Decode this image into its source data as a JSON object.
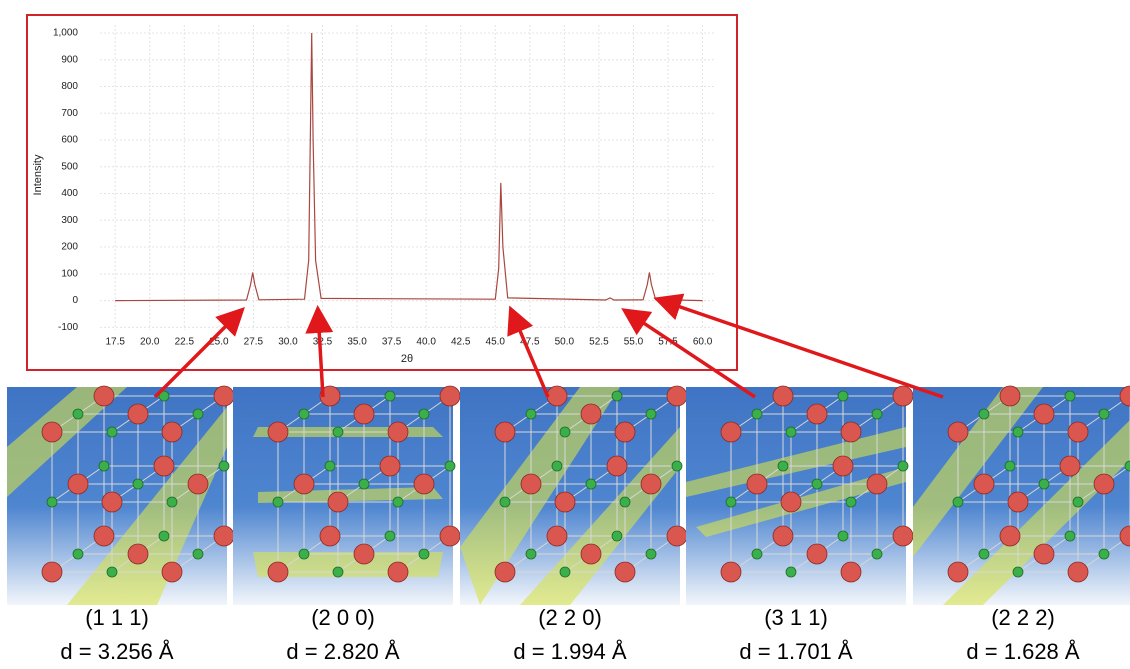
{
  "chart_data": {
    "type": "line",
    "x": [
      17.5,
      27.0,
      27.3,
      27.45,
      27.6,
      27.9,
      31.2,
      31.5,
      31.62,
      31.72,
      31.82,
      32.0,
      32.4,
      45.0,
      45.25,
      45.4,
      45.55,
      45.9,
      53.0,
      53.3,
      53.6,
      55.7,
      56.0,
      56.15,
      56.3,
      56.6,
      60.0
    ],
    "values": [
      0,
      2,
      60,
      105,
      60,
      3,
      5,
      150,
      600,
      1000,
      600,
      150,
      8,
      5,
      120,
      440,
      200,
      10,
      2,
      10,
      2,
      3,
      60,
      105,
      60,
      4,
      0
    ],
    "color": "#a8473f",
    "xlabel": "2θ",
    "ylabel": "Intensity",
    "xlim": [
      16.4,
      60.9
    ],
    "ylim": [
      -110,
      1030
    ],
    "xticks": [
      17.5,
      {
        "value": 20,
        "label": "20.0"
      },
      22.5,
      {
        "value": 25,
        "label": "25.0"
      },
      27.5,
      {
        "value": 30,
        "label": "30.0"
      },
      32.5,
      {
        "value": 35,
        "label": "35.0"
      },
      37.5,
      {
        "value": 40,
        "label": "40.0"
      },
      42.5,
      {
        "value": 45,
        "label": "45.0"
      },
      47.5,
      {
        "value": 50,
        "label": "50.0"
      },
      52.5,
      {
        "value": 55,
        "label": "55.0"
      },
      57.5,
      {
        "value": 60,
        "label": "60.0"
      }
    ],
    "yticks": [
      -100,
      0,
      100,
      200,
      300,
      400,
      500,
      600,
      700,
      800,
      900,
      {
        "value": 1000,
        "label": "1,000"
      }
    ],
    "grid": true
  },
  "panels": [
    {
      "plane": "(1 1 1)",
      "d": "d = 3.256 Å"
    },
    {
      "plane": "(2 0 0)",
      "d": "d = 2.820 Å"
    },
    {
      "plane": "(2 2 0)",
      "d": "d = 1.994 Å"
    },
    {
      "plane": "(3 1 1)",
      "d": "d = 1.701 Å"
    },
    {
      "plane": "(2 2 2)",
      "d": "d = 1.628 Å"
    }
  ]
}
